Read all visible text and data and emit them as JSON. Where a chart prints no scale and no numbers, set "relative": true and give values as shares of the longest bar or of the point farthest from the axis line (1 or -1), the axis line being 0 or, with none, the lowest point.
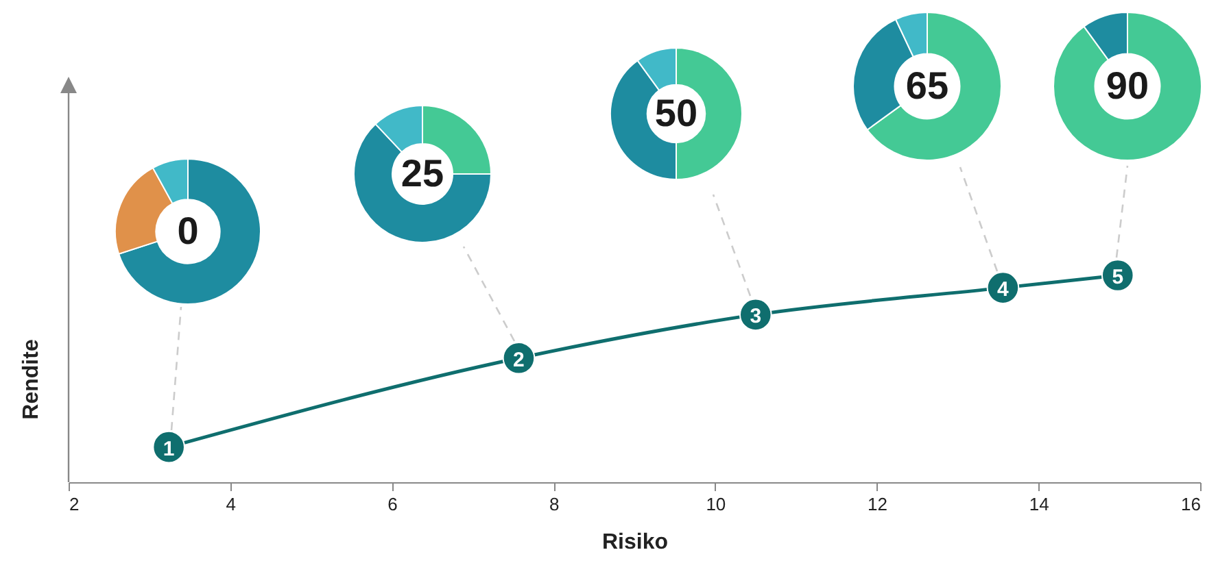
{
  "chart_data": [
    {
      "type": "line",
      "xlabel": "Risiko",
      "ylabel": "Rendite",
      "relative": true,
      "x": [
        3.24,
        7.57,
        10.5,
        13.56,
        14.98
      ],
      "xlim": [
        2,
        16
      ],
      "xticks": [
        2,
        4,
        6,
        8,
        10,
        12,
        14,
        16
      ],
      "grid": false,
      "legend": false,
      "marker": "circle",
      "line_style": "solid",
      "series": [
        {
          "color": "#0f6e6e",
          "values": [
            0.17,
            0.6,
            0.81,
            0.94,
            1
          ]
        }
      ],
      "annotations": [
        {
          "text": "1",
          "x": 3.24,
          "y": 0.17
        },
        {
          "text": "2",
          "x": 7.57,
          "y": 0.6
        },
        {
          "text": "3",
          "x": 10.5,
          "y": 0.81
        },
        {
          "text": "4",
          "x": 13.56,
          "y": 0.94
        },
        {
          "text": "5",
          "x": 14.98,
          "y": 1
        }
      ]
    },
    {
      "type": "donut",
      "title": "0",
      "categories": [
        null,
        null,
        null
      ],
      "values": [
        70,
        22,
        8
      ],
      "colors": [
        "#1e8ca0",
        "#e0914a",
        "#41b9c8"
      ]
    },
    {
      "type": "donut",
      "title": "25",
      "categories": [
        null,
        null,
        null
      ],
      "values": [
        25,
        63,
        12
      ],
      "colors": [
        "#44c995",
        "#1e8ca0",
        "#41b9c8"
      ]
    },
    {
      "type": "donut",
      "title": "50",
      "categories": [
        null,
        null,
        null
      ],
      "values": [
        50,
        40,
        10
      ],
      "colors": [
        "#44c995",
        "#1e8ca0",
        "#41b9c8"
      ]
    },
    {
      "type": "donut",
      "title": "65",
      "categories": [
        null,
        null,
        null
      ],
      "values": [
        65,
        28,
        7
      ],
      "colors": [
        "#44c995",
        "#1e8ca0",
        "#41b9c8"
      ]
    },
    {
      "type": "donut",
      "title": "90",
      "categories": [
        null,
        null
      ],
      "values": [
        90,
        10
      ],
      "colors": [
        "#44c995",
        "#1e8ca0"
      ]
    }
  ]
}
